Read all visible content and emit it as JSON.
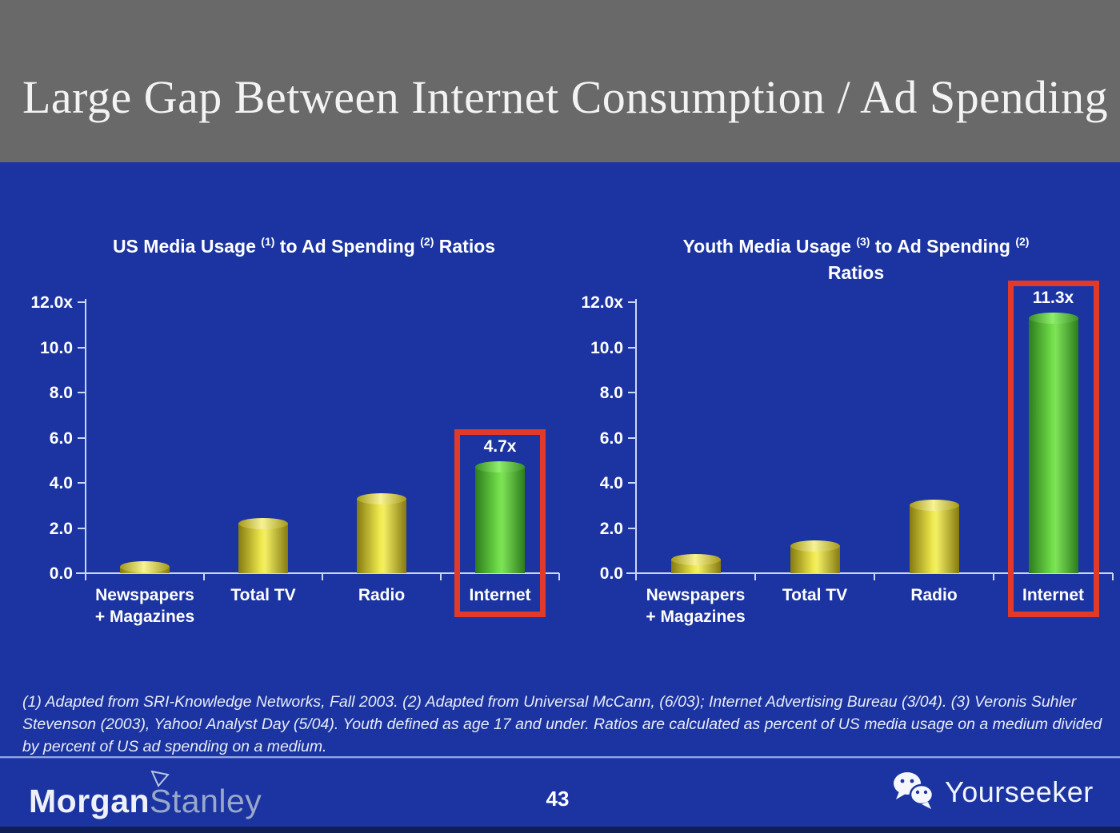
{
  "slide": {
    "title": "Large Gap Between Internet Consumption / Ad Spending",
    "page_number": "43"
  },
  "footnote": "(1) Adapted from SRI-Knowledge Networks, Fall 2003.  (2) Adapted from Universal McCann, (6/03); Internet Advertising Bureau (3/04). (3) Veronis Suhler Stevenson (2003), Yahoo! Analyst Day (5/04).  Youth defined as age 17 and under.  Ratios are calculated as percent of US media usage on a medium divided by percent of US ad spending on a medium.",
  "footer": {
    "brand_left_part1": "Morgan",
    "brand_left_part2": "Stanley",
    "brand_right": "Yourseeker",
    "flag_icon": "morgan-stanley-flag-icon",
    "chat_icon": "wechat-bubbles-icon"
  },
  "colors": {
    "background_blue": "#1b34a1",
    "header_gray": "#696969",
    "bar_yellow_center": "#efe94e",
    "bar_yellow_edge": "#857a10",
    "bar_green_center": "#6fdc48",
    "bar_green_edge": "#2d7c1c",
    "highlight_red": "#e23a2a",
    "axis": "#ccd6f4",
    "text": "#ffffff"
  },
  "chart_data": [
    {
      "type": "bar",
      "title_parts": [
        "US Media Usage ",
        "(1)",
        " to Ad Spending ",
        "(2)",
        " Ratios"
      ],
      "title_line2": "",
      "categories": [
        [
          "Newspapers",
          "+ Magazines"
        ],
        [
          "Total TV"
        ],
        [
          "Radio"
        ],
        [
          "Internet"
        ]
      ],
      "values": [
        0.3,
        2.2,
        3.3,
        4.7
      ],
      "bar_colors": [
        "yellow",
        "yellow",
        "yellow",
        "green"
      ],
      "data_labels": [
        "",
        "",
        "",
        "4.7x"
      ],
      "highlight_index": 3,
      "ytick_labels": [
        "12.0x",
        "10.0",
        "8.0",
        "6.0",
        "4.0",
        "2.0",
        "0.0"
      ],
      "ytick_values": [
        12,
        10,
        8,
        6,
        4,
        2,
        0
      ],
      "ylim": [
        0,
        12
      ],
      "grid": false,
      "legend": false,
      "xlabel": "",
      "ylabel": ""
    },
    {
      "type": "bar",
      "title_parts": [
        "Youth Media Usage ",
        "(3)",
        " to Ad Spending ",
        "(2)"
      ],
      "title_line2": "Ratios",
      "categories": [
        [
          "Newspapers",
          "+ Magazines"
        ],
        [
          "Total TV"
        ],
        [
          "Radio"
        ],
        [
          "Internet"
        ]
      ],
      "values": [
        0.6,
        1.2,
        3.0,
        11.3
      ],
      "bar_colors": [
        "yellow",
        "yellow",
        "yellow",
        "green"
      ],
      "data_labels": [
        "",
        "",
        "",
        "11.3x"
      ],
      "highlight_index": 3,
      "ytick_labels": [
        "12.0x",
        "10.0",
        "8.0",
        "6.0",
        "4.0",
        "2.0",
        "0.0"
      ],
      "ytick_values": [
        12,
        10,
        8,
        6,
        4,
        2,
        0
      ],
      "ylim": [
        0,
        12
      ],
      "grid": false,
      "legend": false,
      "xlabel": "",
      "ylabel": ""
    }
  ]
}
